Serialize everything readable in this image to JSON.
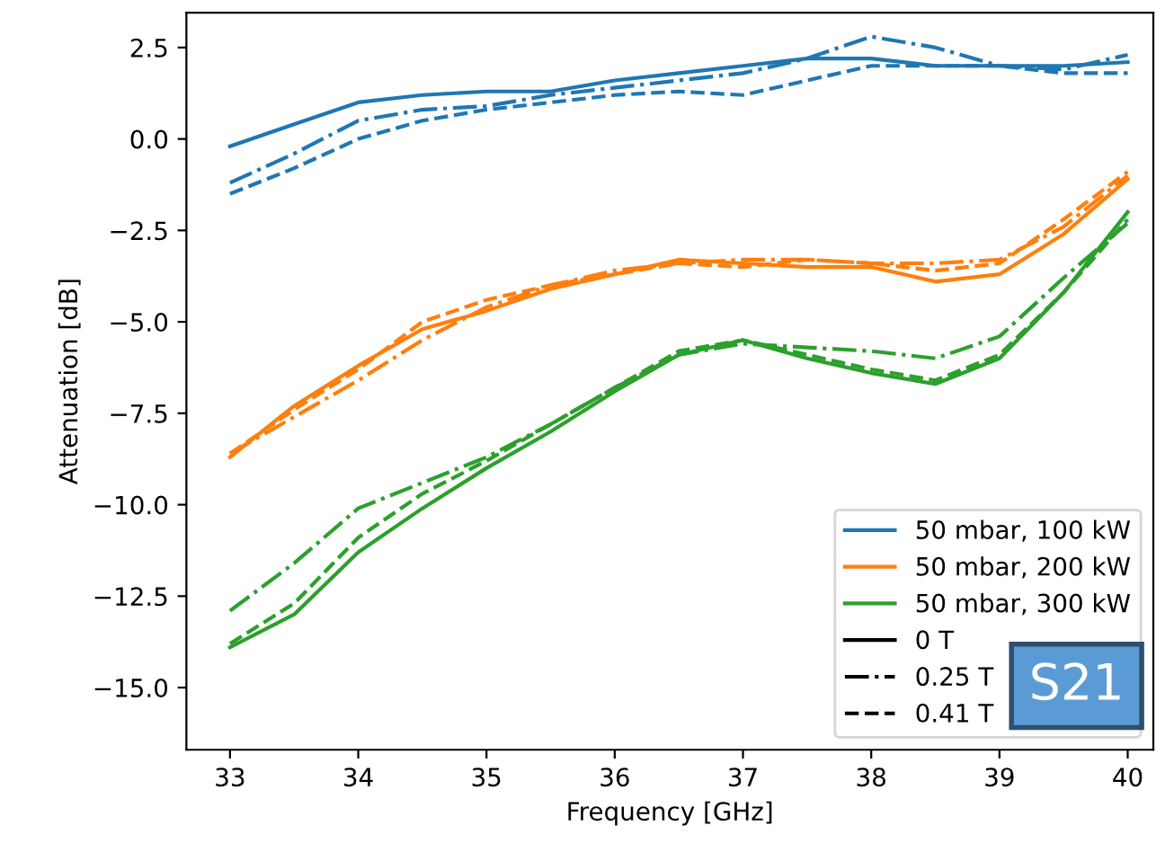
{
  "chart_data": {
    "type": "line",
    "xlabel": "Frequency [GHz]",
    "ylabel": "Attenuation [dB]",
    "x": [
      33,
      33.5,
      34,
      34.5,
      35,
      35.5,
      36,
      36.5,
      37,
      37.5,
      38,
      38.5,
      39,
      39.5,
      40
    ],
    "xlim": [
      32.66,
      40.2
    ],
    "ylim": [
      -16.7,
      3.45
    ],
    "xticks": [
      33,
      34,
      35,
      36,
      37,
      38,
      39,
      40
    ],
    "yticks": [
      {
        "value": -15,
        "label": "−15.0"
      },
      {
        "value": -12.5,
        "label": "−12.5"
      },
      {
        "value": -10,
        "label": "−10.0"
      },
      {
        "value": -7.5,
        "label": "−7.5"
      },
      {
        "value": -5,
        "label": "−5.0"
      },
      {
        "value": -2.5,
        "label": "−2.5"
      },
      {
        "value": 0,
        "label": "0.0"
      },
      {
        "value": 2.5,
        "label": "2.5"
      }
    ],
    "legend": "bottom right",
    "grid": false,
    "series": [
      {
        "name": "50 mbar, 100 kW",
        "color": "#1f77b4",
        "line_style": "solid",
        "values": [
          -0.2,
          0.4,
          1.0,
          1.2,
          1.3,
          1.3,
          1.6,
          1.8,
          2.0,
          2.2,
          2.2,
          2.0,
          2.0,
          2.0,
          2.1
        ]
      },
      {
        "color": "#1f77b4",
        "line_style": "dashdot",
        "values": [
          -1.2,
          -0.4,
          0.5,
          0.8,
          0.9,
          1.2,
          1.4,
          1.6,
          1.8,
          2.2,
          2.8,
          2.5,
          2.0,
          1.9,
          2.3
        ]
      },
      {
        "color": "#1f77b4",
        "line_style": "dashed",
        "values": [
          -1.5,
          -0.8,
          0.0,
          0.5,
          0.8,
          1.0,
          1.2,
          1.3,
          1.2,
          1.6,
          2.0,
          2.0,
          2.0,
          1.8,
          1.8
        ]
      },
      {
        "name": "50 mbar, 200 kW",
        "color": "#ff7f0e",
        "line_style": "solid",
        "values": [
          -8.7,
          -7.3,
          -6.2,
          -5.2,
          -4.7,
          -4.1,
          -3.7,
          -3.3,
          -3.4,
          -3.5,
          -3.5,
          -3.9,
          -3.7,
          -2.6,
          -1.1
        ]
      },
      {
        "color": "#ff7f0e",
        "line_style": "dashdot",
        "values": [
          -8.6,
          -7.6,
          -6.6,
          -5.5,
          -4.6,
          -4.0,
          -3.6,
          -3.4,
          -3.3,
          -3.3,
          -3.4,
          -3.4,
          -3.3,
          -2.4,
          -1.0
        ]
      },
      {
        "color": "#ff7f0e",
        "line_style": "dashed",
        "values": [
          -8.6,
          -7.4,
          -6.3,
          -5.0,
          -4.4,
          -4.0,
          -3.7,
          -3.4,
          -3.5,
          -3.3,
          -3.4,
          -3.6,
          -3.4,
          -2.2,
          -0.9
        ]
      },
      {
        "name": "50 mbar, 300 kW",
        "color": "#2ca02c",
        "line_style": "solid",
        "values": [
          -13.9,
          -13.0,
          -11.3,
          -10.1,
          -9.0,
          -8.0,
          -6.9,
          -5.9,
          -5.5,
          -6.0,
          -6.4,
          -6.7,
          -6.0,
          -4.2,
          -2.0
        ]
      },
      {
        "color": "#2ca02c",
        "line_style": "dashdot",
        "values": [
          -12.9,
          -11.6,
          -10.1,
          -9.4,
          -8.7,
          -7.8,
          -6.8,
          -5.9,
          -5.6,
          -5.7,
          -5.8,
          -6.0,
          -5.4,
          -3.8,
          -2.3
        ]
      },
      {
        "color": "#2ca02c",
        "line_style": "dashed",
        "values": [
          -13.8,
          -12.7,
          -10.9,
          -9.7,
          -8.8,
          -7.8,
          -6.8,
          -5.8,
          -5.5,
          -5.9,
          -6.3,
          -6.6,
          -5.9,
          -4.2,
          -2.2
        ]
      },
      {
        "name": "0 T",
        "color": "#000000",
        "line_style": "solid",
        "values": [
          null,
          null,
          null,
          null,
          null,
          null,
          null,
          null,
          null,
          null,
          null,
          null,
          null,
          null,
          null
        ]
      },
      {
        "name": "0.25 T",
        "color": "#000000",
        "line_style": "dashdot",
        "values": [
          null,
          null,
          null,
          null,
          null,
          null,
          null,
          null,
          null,
          null,
          null,
          null,
          null,
          null,
          null
        ]
      },
      {
        "name": "0.41 T",
        "color": "#000000",
        "line_style": "dashed",
        "values": [
          null,
          null,
          null,
          null,
          null,
          null,
          null,
          null,
          null,
          null,
          null,
          null,
          null,
          null,
          null
        ]
      }
    ],
    "annotations": [
      "S21"
    ]
  }
}
